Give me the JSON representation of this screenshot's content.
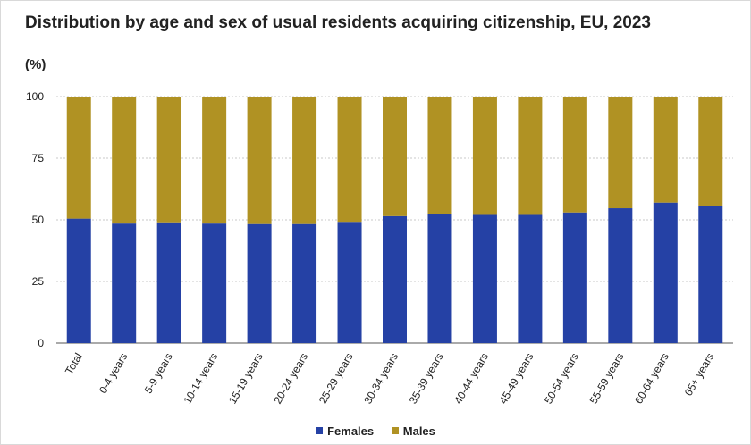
{
  "chart_data": {
    "type": "bar",
    "stacked": true,
    "title": "Distribution by age and sex of usual residents acquiring citizenship, EU, 2023",
    "unit": "(%)",
    "ylim": [
      0,
      100
    ],
    "yticks": [
      0,
      25,
      50,
      75,
      100
    ],
    "grid": "horizontal",
    "legend_position": "bottom",
    "categories": [
      "Total",
      "0-4 years",
      "5-9 years",
      "10-14 years",
      "15-19 years",
      "20-24 years",
      "25-29 years",
      "30-34 years",
      "35-39 years",
      "40-44 years",
      "45-49 years",
      "50-54 years",
      "55-59 years",
      "60-64 years",
      "65+ years"
    ],
    "series": [
      {
        "name": "Females",
        "color": "#2541a5",
        "values": [
          50.5,
          48.5,
          49.0,
          48.5,
          48.3,
          48.3,
          49.2,
          51.5,
          52.3,
          52.0,
          52.0,
          53.0,
          54.7,
          57.0,
          55.8
        ]
      },
      {
        "name": "Males",
        "color": "#b09223",
        "values": [
          49.5,
          51.5,
          51.0,
          51.5,
          51.7,
          51.7,
          50.8,
          48.5,
          47.7,
          48.0,
          48.0,
          47.0,
          45.3,
          43.0,
          44.2
        ]
      }
    ]
  }
}
